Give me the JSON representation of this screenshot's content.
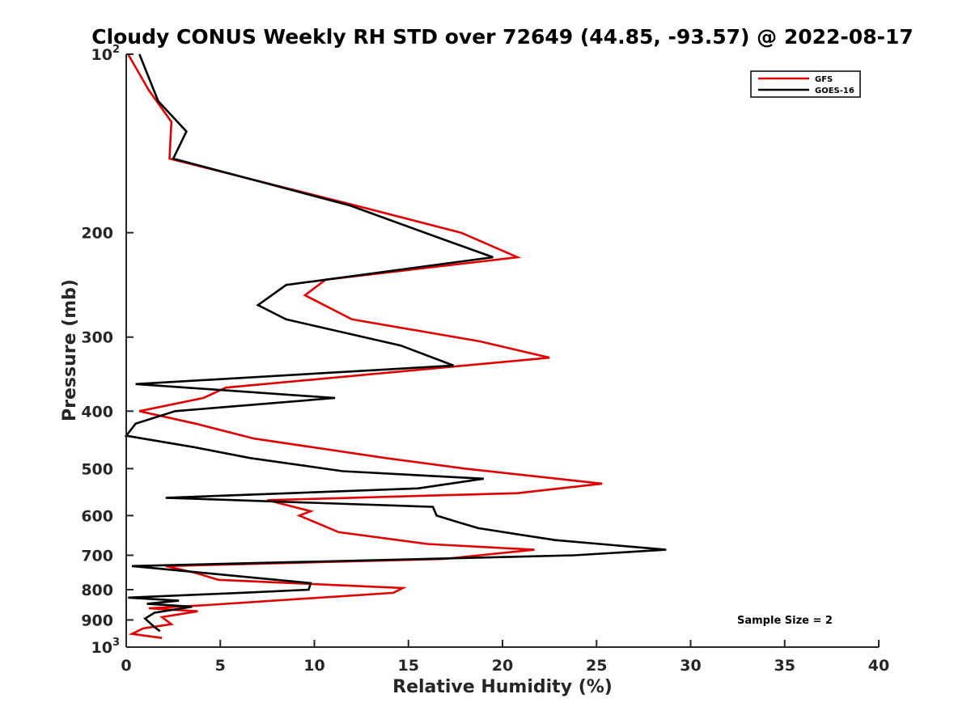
{
  "chart_data": {
    "type": "line",
    "title": "Cloudy CONUS Weekly RH STD over 72649 (44.85, -93.57) @ 2022-08-17",
    "xlabel": "Relative Humidity (%)",
    "ylabel": "Pressure (mb)",
    "xlim": [
      0,
      40
    ],
    "ylim": [
      100,
      1000
    ],
    "y_scale": "log",
    "y_reversed": true,
    "grid": false,
    "legend_position": "top-right",
    "x_ticks": [
      "0",
      "5",
      "10",
      "15",
      "20",
      "25",
      "30",
      "35",
      "40"
    ],
    "y_ticks": [
      {
        "value": 100,
        "label": "10",
        "exp": "2"
      },
      {
        "value": 200,
        "label": "200"
      },
      {
        "value": 300,
        "label": "300"
      },
      {
        "value": 400,
        "label": "400"
      },
      {
        "value": 500,
        "label": "500"
      },
      {
        "value": 600,
        "label": "600"
      },
      {
        "value": 700,
        "label": "700"
      },
      {
        "value": 800,
        "label": "800"
      },
      {
        "value": 900,
        "label": "900"
      },
      {
        "value": 1000,
        "label": "10",
        "exp": "3"
      }
    ],
    "annotation": "Sample Size = 2",
    "series": [
      {
        "name": "GFS",
        "color": "#e00000",
        "points": [
          [
            0.1,
            100
          ],
          [
            1.2,
            115
          ],
          [
            2.4,
            130
          ],
          [
            2.3,
            150
          ],
          [
            12.2,
            180
          ],
          [
            17.8,
            200
          ],
          [
            20.8,
            220
          ],
          [
            10.6,
            240
          ],
          [
            9.5,
            255
          ],
          [
            12.0,
            280
          ],
          [
            18.8,
            305
          ],
          [
            22.5,
            325
          ],
          [
            5.3,
            365
          ],
          [
            4.1,
            380
          ],
          [
            0.7,
            400
          ],
          [
            3.7,
            420
          ],
          [
            6.8,
            445
          ],
          [
            13.8,
            480
          ],
          [
            18.0,
            500
          ],
          [
            25.3,
            530
          ],
          [
            20.8,
            550
          ],
          [
            7.5,
            565
          ],
          [
            9.8,
            590
          ],
          [
            9.2,
            600
          ],
          [
            11.3,
            640
          ],
          [
            16.0,
            670
          ],
          [
            21.7,
            685
          ],
          [
            16.9,
            710
          ],
          [
            2.1,
            730
          ],
          [
            3.7,
            750
          ],
          [
            4.9,
            770
          ],
          [
            14.7,
            795
          ],
          [
            14.2,
            810
          ],
          [
            4.1,
            850
          ],
          [
            1.2,
            860
          ],
          [
            3.8,
            870
          ],
          [
            1.9,
            890
          ],
          [
            2.4,
            915
          ],
          [
            0.9,
            930
          ],
          [
            0.3,
            950
          ],
          [
            1.9,
            965
          ]
        ]
      },
      {
        "name": "GOES-16",
        "color": "#000000",
        "points": [
          [
            0.7,
            100
          ],
          [
            1.7,
            120
          ],
          [
            3.2,
            135
          ],
          [
            2.5,
            150
          ],
          [
            11.9,
            180
          ],
          [
            16.8,
            205
          ],
          [
            19.5,
            220
          ],
          [
            8.5,
            245
          ],
          [
            7.0,
            265
          ],
          [
            8.5,
            280
          ],
          [
            14.6,
            310
          ],
          [
            17.4,
            335
          ],
          [
            0.5,
            360
          ],
          [
            11.1,
            380
          ],
          [
            2.6,
            400
          ],
          [
            0.5,
            420
          ],
          [
            0.0,
            440
          ],
          [
            3.6,
            460
          ],
          [
            6.6,
            480
          ],
          [
            11.5,
            505
          ],
          [
            19.0,
            520
          ],
          [
            15.5,
            540
          ],
          [
            2.1,
            560
          ],
          [
            16.3,
            580
          ],
          [
            16.5,
            600
          ],
          [
            17.6,
            615
          ],
          [
            18.7,
            630
          ],
          [
            22.8,
            660
          ],
          [
            28.7,
            685
          ],
          [
            23.8,
            700
          ],
          [
            0.3,
            730
          ],
          [
            9.8,
            780
          ],
          [
            9.7,
            800
          ],
          [
            6.1,
            810
          ],
          [
            0.1,
            825
          ],
          [
            2.8,
            835
          ],
          [
            1.1,
            845
          ],
          [
            3.5,
            855
          ],
          [
            1.5,
            875
          ],
          [
            1.0,
            895
          ],
          [
            1.5,
            925
          ],
          [
            1.8,
            940
          ]
        ]
      }
    ]
  }
}
